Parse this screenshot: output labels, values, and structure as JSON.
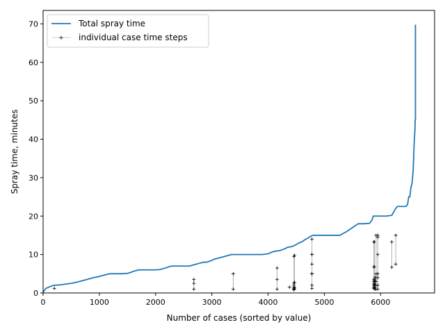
{
  "chart_data": {
    "type": "line",
    "xlabel": "Number of cases (sorted by value)",
    "ylabel": "Spray time, minutes",
    "xlim": [
      0,
      6960
    ],
    "ylim": [
      0,
      73.5
    ],
    "x_ticks": [
      0,
      1000,
      2000,
      3000,
      4000,
      5000,
      6000
    ],
    "y_ticks": [
      0,
      10,
      20,
      30,
      40,
      50,
      60,
      70
    ],
    "legend_position": "top-left",
    "grid": false,
    "series": [
      {
        "name": "Total spray time",
        "style": "line",
        "color": "#1f77b4",
        "x": [
          0,
          50,
          100,
          150,
          200,
          300,
          400,
          500,
          600,
          700,
          800,
          900,
          1000,
          1050,
          1100,
          1150,
          1200,
          1300,
          1400,
          1500,
          1550,
          1600,
          1650,
          1700,
          1800,
          1900,
          2000,
          2080,
          2150,
          2200,
          2250,
          2300,
          2400,
          2500,
          2600,
          2650,
          2700,
          2750,
          2800,
          2850,
          2900,
          2950,
          3000,
          3050,
          3100,
          3200,
          3300,
          3350,
          3400,
          3500,
          3700,
          3900,
          4000,
          4100,
          4200,
          4300,
          4350,
          4400,
          4450,
          4500,
          4550,
          4600,
          4650,
          4700,
          4750,
          4800,
          4900,
          5000,
          5100,
          5200,
          5280,
          5300,
          5350,
          5400,
          5450,
          5500,
          5550,
          5600,
          5700,
          5800,
          5850,
          5860,
          5870,
          5900,
          6000,
          6100,
          6200,
          6250,
          6270,
          6300,
          6400,
          6450,
          6480,
          6500,
          6520,
          6540,
          6560,
          6580,
          6590,
          6600,
          6610,
          6615,
          6620
        ],
        "y": [
          0.2,
          1.2,
          1.5,
          1.8,
          2.0,
          2.1,
          2.3,
          2.5,
          2.8,
          3.2,
          3.6,
          4.0,
          4.3,
          4.5,
          4.7,
          4.9,
          5.0,
          5.0,
          5.0,
          5.1,
          5.3,
          5.6,
          5.8,
          6.0,
          6.0,
          6.0,
          6.0,
          6.1,
          6.4,
          6.6,
          6.9,
          7.0,
          7.0,
          7.0,
          7.0,
          7.2,
          7.4,
          7.6,
          7.8,
          8.0,
          8.0,
          8.2,
          8.5,
          8.8,
          9.0,
          9.4,
          9.8,
          10.0,
          10.0,
          10.0,
          10.0,
          10.0,
          10.2,
          10.8,
          11.0,
          11.5,
          11.9,
          12.0,
          12.2,
          12.6,
          13.0,
          13.3,
          13.8,
          14.2,
          14.7,
          15.0,
          15.0,
          15.0,
          15.0,
          15.0,
          15.0,
          15.2,
          15.6,
          16.0,
          16.5,
          17.0,
          17.5,
          18.0,
          18.0,
          18.1,
          19.0,
          19.5,
          20.0,
          20.0,
          20.0,
          20.0,
          20.2,
          21.5,
          22.0,
          22.5,
          22.5,
          22.5,
          23.0,
          25.0,
          25.0,
          27.5,
          28.5,
          32.0,
          36.0,
          40.0,
          42.0,
          45.0,
          45.0
        ]
      },
      {
        "name": "individual case time steps",
        "style": "marker+",
        "color": "#000000",
        "x": [
          200,
          2680,
          2680,
          2680,
          3380,
          3380,
          4160,
          4160,
          4160,
          4380,
          4460,
          4460,
          4460,
          4460,
          4460,
          4460,
          4460,
          4470,
          4470,
          4470,
          4780,
          4780,
          4780,
          4780,
          4780,
          4780,
          4780,
          4780,
          5880,
          5880,
          5880,
          5880,
          5880,
          5880,
          5880,
          5880,
          5890,
          5890,
          5890,
          5890,
          5890,
          5900,
          5900,
          5900,
          5900,
          5920,
          5920,
          5920,
          5920,
          5920,
          5920,
          5950,
          5950,
          5950,
          5950,
          5950,
          5950,
          5950,
          6200,
          6200,
          6270,
          6270
        ],
        "y": [
          1.2,
          3.5,
          2.5,
          1.0,
          5.0,
          1.0,
          6.5,
          3.5,
          1.0,
          1.5,
          9.5,
          2.5,
          2.0,
          1.5,
          1.2,
          1.0,
          0.8,
          9.8,
          2.8,
          1.3,
          14.0,
          10.0,
          10.0,
          7.5,
          5.0,
          5.0,
          2.0,
          1.2,
          13.3,
          6.8,
          3.5,
          3.0,
          2.5,
          2.0,
          1.5,
          1.2,
          13.3,
          6.8,
          3.2,
          2.2,
          1.3,
          4.0,
          3.0,
          2.0,
          1.0,
          15.0,
          5.0,
          4.0,
          3.0,
          2.0,
          1.0,
          15.0,
          14.5,
          10.0,
          5.0,
          4.0,
          2.0,
          1.0,
          13.3,
          6.7,
          15.0,
          7.5
        ]
      }
    ],
    "top_segment": {
      "x": [
        6620,
        6620
      ],
      "y": [
        45.0,
        69.8
      ]
    }
  }
}
